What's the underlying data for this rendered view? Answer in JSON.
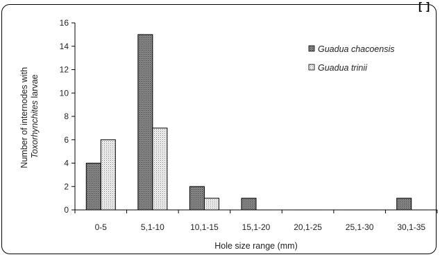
{
  "chart_data": {
    "type": "bar",
    "title": "",
    "xlabel": "Hole size range (mm)",
    "ylabel": {
      "line1": "Number of internodes with",
      "line2_italic": "Toxorhynchites",
      "line2_rest": " larvae"
    },
    "categories": [
      "0-5",
      "5,1-10",
      "10,1-15",
      "15,1-20",
      "20,1-25",
      "25,1-30",
      "30,1-35"
    ],
    "series": [
      {
        "name": "Guadua chacoensis",
        "values": [
          4,
          15,
          2,
          1,
          0,
          0,
          1
        ],
        "pattern": "dark-dots"
      },
      {
        "name": "Guadua trinii",
        "values": [
          6,
          7,
          1,
          0,
          0,
          0,
          0
        ],
        "pattern": "light-dots"
      }
    ],
    "ylim": [
      0,
      16
    ],
    "yticks": [
      0,
      2,
      4,
      6,
      8,
      10,
      12,
      14,
      16
    ],
    "grid": false,
    "legend_position": "top-right"
  },
  "corner_mark": "[ ]"
}
